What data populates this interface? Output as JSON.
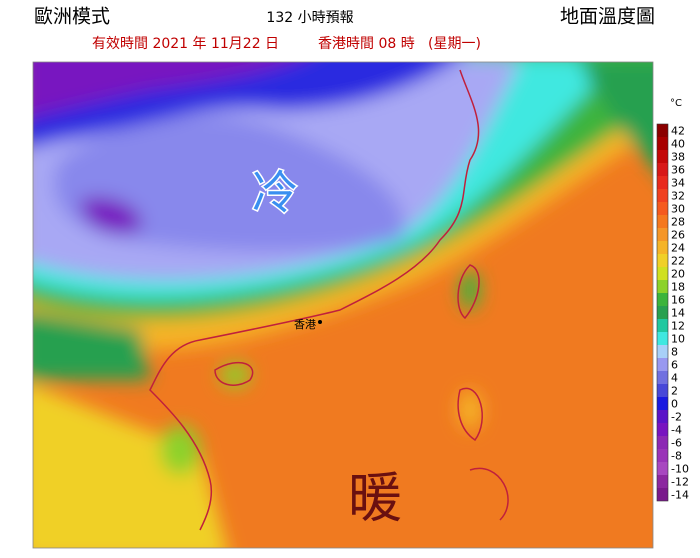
{
  "header": {
    "model": "歐洲模式",
    "forecast": "132 小時預報",
    "map_title": "地面溫度圖",
    "valid_time": "有效時間 2021 年 11月22 日",
    "hk_time": "香港時間 08 時",
    "weekday": "(星期一)"
  },
  "map": {
    "cold_label": "冷",
    "warm_label": "暖",
    "place": "香港"
  },
  "colorbar": {
    "unit": "°C",
    "ticks": [
      42,
      40,
      38,
      36,
      34,
      32,
      30,
      28,
      26,
      24,
      22,
      20,
      18,
      16,
      14,
      12,
      10,
      8,
      6,
      4,
      2,
      0,
      -2,
      -4,
      -6,
      -8,
      -10,
      -12,
      -14
    ],
    "colors": [
      "#8b0000",
      "#a80000",
      "#c40808",
      "#d81818",
      "#e82a1e",
      "#f04020",
      "#f55a1e",
      "#f5781e",
      "#f59628",
      "#f5b428",
      "#f0d028",
      "#d0e020",
      "#8cd22a",
      "#3cb43c",
      "#28a050",
      "#20c8a0",
      "#40e8e0",
      "#a8d0f8",
      "#9898f0",
      "#7070e0",
      "#4848d8",
      "#1a1ae0",
      "#5a14c8",
      "#7814c0",
      "#8c28b4",
      "#9a34b8",
      "#a848c0",
      "#8c28a0",
      "#7a1a8c"
    ]
  }
}
